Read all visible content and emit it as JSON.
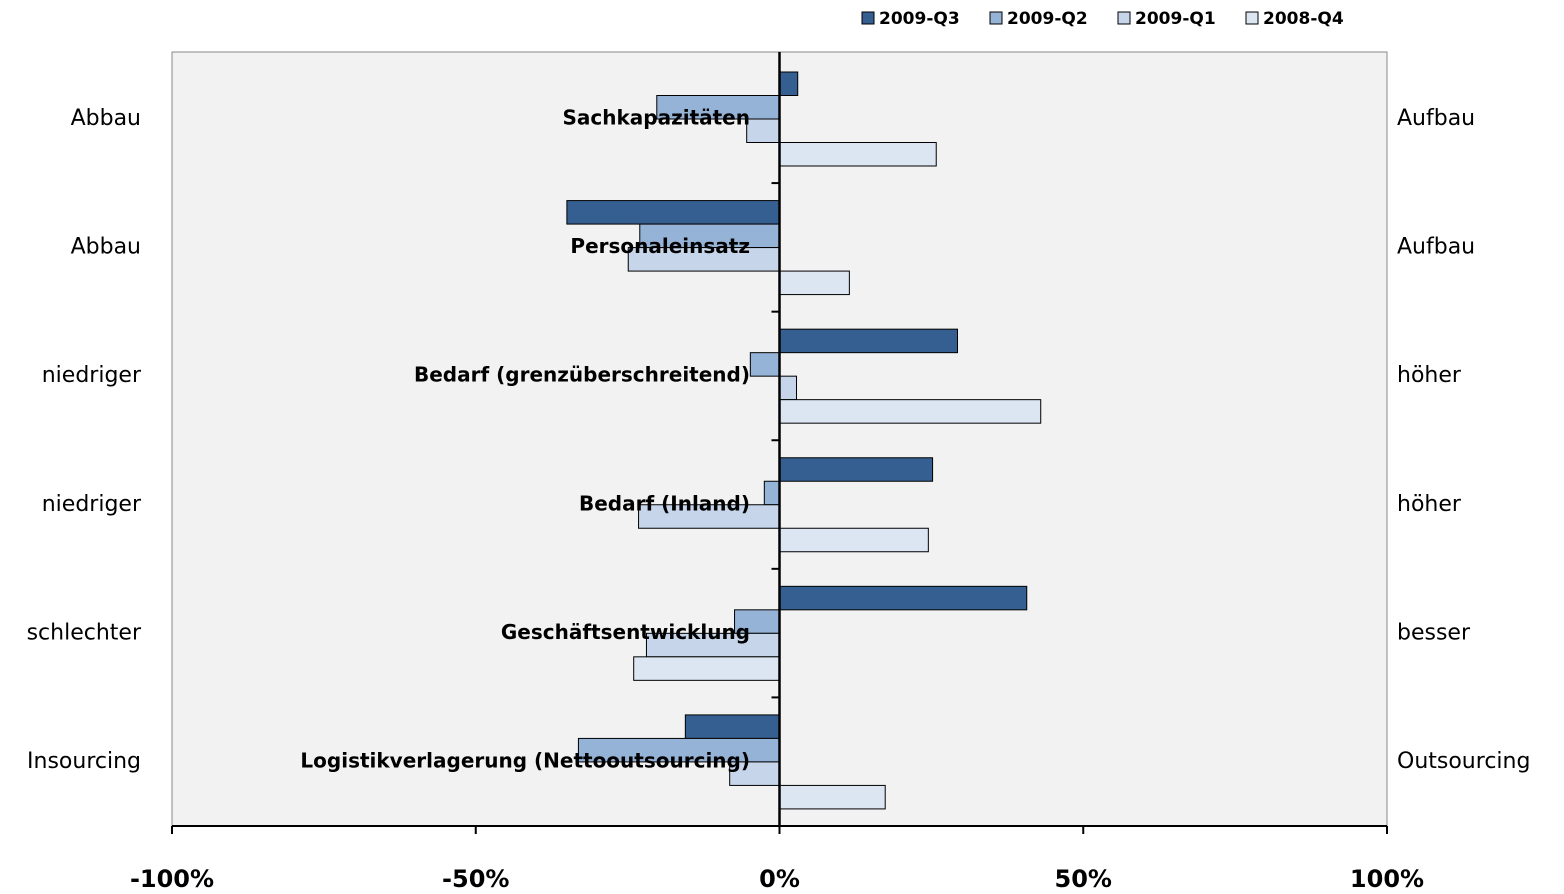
{
  "chart_data": {
    "type": "hbar",
    "categories": [
      "Sachkapazitäten",
      "Personaleinsatz",
      "Bedarf (grenzüberschreitend)",
      "Bedarf (Inland)",
      "Geschäftsentwicklung",
      "Logistikverlagerung (Nettooutsourcing)"
    ],
    "left_labels": [
      "Abbau",
      "Abbau",
      "niedriger",
      "niedriger",
      "schlechter",
      "Insourcing"
    ],
    "right_labels": [
      "Aufbau",
      "Aufbau",
      "höher",
      "höher",
      "besser",
      "Outsourcing"
    ],
    "series": [
      {
        "name": "2009-Q3",
        "color": "#365f91",
        "values": [
          3,
          -35,
          29.3,
          25.2,
          40.7,
          -15.5
        ]
      },
      {
        "name": "2009-Q2",
        "color": "#95b3d7",
        "values": [
          -20.2,
          -23,
          -4.8,
          -2.5,
          -7.4,
          -33.1
        ]
      },
      {
        "name": "2009-Q1",
        "color": "#c6d5ea",
        "values": [
          -5.4,
          -24.9,
          2.8,
          -23.2,
          -21.9,
          -8.2
        ]
      },
      {
        "name": "2008-Q4",
        "color": "#dce6f2",
        "values": [
          25.8,
          11.5,
          43,
          24.5,
          -24,
          17.4
        ]
      }
    ],
    "xlim": [
      -100,
      100
    ],
    "xticks": [
      {
        "value": -100,
        "label": "-100%"
      },
      {
        "value": -50,
        "label": "-50%"
      },
      {
        "value": 0,
        "label": "0%"
      },
      {
        "value": 50,
        "label": "50%"
      },
      {
        "value": 100,
        "label": "100%"
      }
    ],
    "legend": "top-right"
  }
}
